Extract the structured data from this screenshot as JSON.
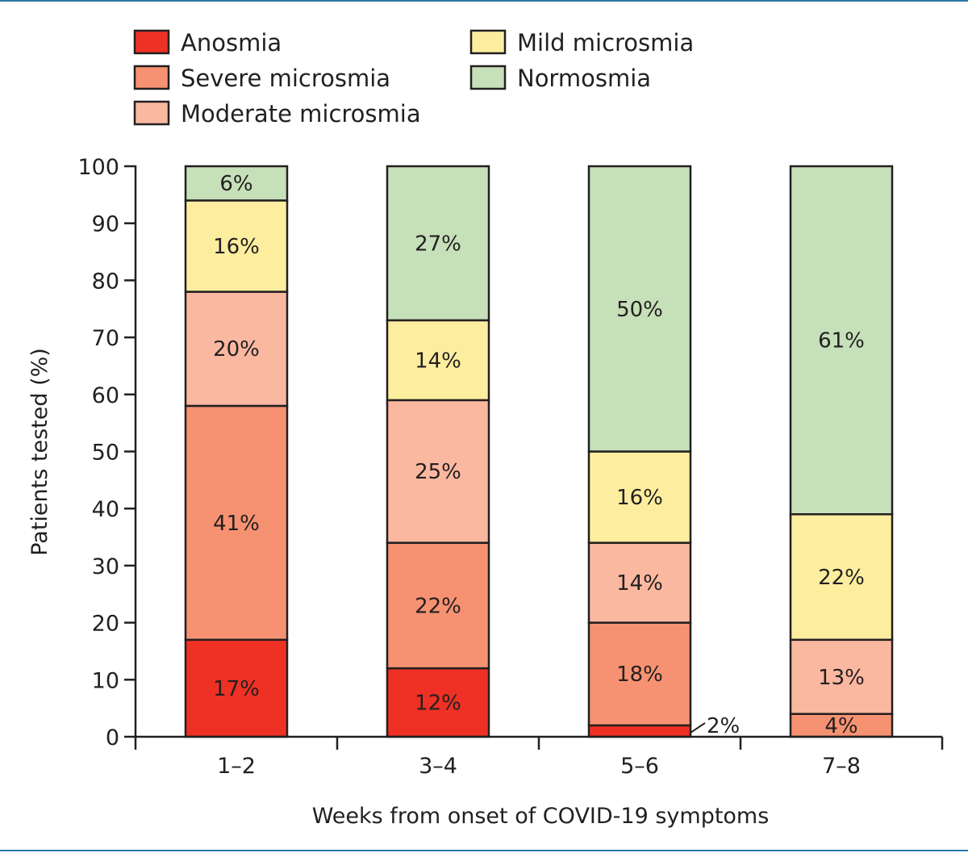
{
  "chart_data": {
    "type": "bar",
    "stacked": true,
    "xlabel": "Weeks from onset of COVID-19 symptoms",
    "ylabel": "Patients tested (%)",
    "ylim": [
      0,
      100
    ],
    "yticks": [
      0,
      10,
      20,
      30,
      40,
      50,
      60,
      70,
      80,
      90,
      100
    ],
    "grid": false,
    "legend_position": "top",
    "categories": [
      "1–2",
      "3–4",
      "5–6",
      "7–8"
    ],
    "series": [
      {
        "name": "Anosmia",
        "color": "#ee3124",
        "values": [
          17,
          12,
          2,
          0
        ],
        "labels": [
          "17%",
          "12%",
          "2%",
          ""
        ]
      },
      {
        "name": "Severe microsmia",
        "color": "#f69272",
        "values": [
          41,
          22,
          18,
          4
        ],
        "labels": [
          "41%",
          "22%",
          "18%",
          "4%"
        ]
      },
      {
        "name": "Moderate microsmia",
        "color": "#fbb8a0",
        "values": [
          20,
          25,
          14,
          13
        ],
        "labels": [
          "20%",
          "25%",
          "14%",
          "13%"
        ]
      },
      {
        "name": "Mild microsmia",
        "color": "#fdee9f",
        "values": [
          16,
          14,
          16,
          22
        ],
        "labels": [
          "16%",
          "14%",
          "16%",
          "22%"
        ]
      },
      {
        "name": "Normosmia",
        "color": "#c6e0b9",
        "values": [
          6,
          27,
          50,
          61
        ],
        "labels": [
          "6%",
          "27%",
          "50%",
          "61%"
        ]
      }
    ]
  },
  "colors": {
    "frame": "#2a79a8",
    "outline": "#231f20",
    "label_on_dark": "#ffffff",
    "label_default": "#231f20"
  }
}
